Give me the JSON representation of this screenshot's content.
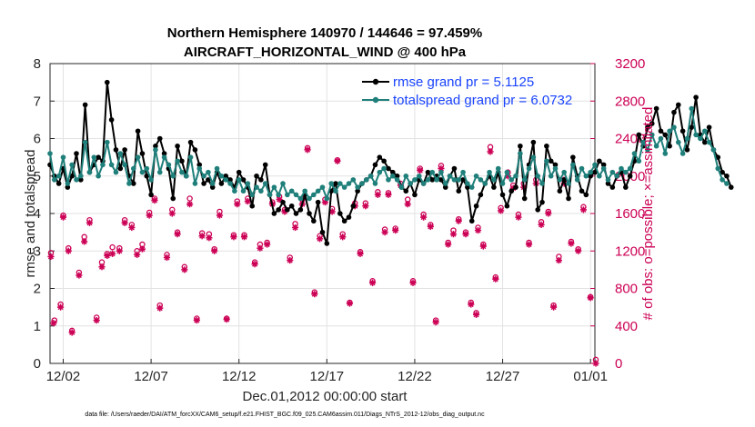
{
  "chart_data": {
    "type": "line",
    "title_line1": "Northern Hemisphere 140970 / 144646 = 97.459%",
    "title_line2": "AIRCRAFT_HORIZONTAL_WIND @ 400 hPa",
    "xlabel": "Dec.01,2012 00:00:00 start",
    "ylabel": "rmse and totalspread",
    "ylabel_right": "# of obs: o=possible; ×=assimilated",
    "footnote": "data file: /Users/raeder/DAI/ATM_forcXX/CAM6_setup/f.e21.FHIST_BGC.f09_025.CAM6assim.011/Diags_NTrS_2012-12/obs_diag_output.nc",
    "x_tick_labels": [
      "12/02",
      "12/07",
      "12/12",
      "12/17",
      "12/22",
      "12/27",
      "01/01"
    ],
    "x_tick_days": [
      2,
      7,
      12,
      17,
      22,
      27,
      32
    ],
    "xlim_days": [
      1.25,
      32.25
    ],
    "ylim": [
      0,
      8
    ],
    "y_ticks": [
      0,
      1,
      2,
      3,
      4,
      5,
      6,
      7,
      8
    ],
    "ylim_right": [
      0,
      3200
    ],
    "y_ticks_right": [
      0,
      400,
      800,
      1200,
      1600,
      2000,
      2400,
      2800,
      3200
    ],
    "legend": [
      {
        "label": "rmse grand pr = 5.1125",
        "color": "#000000"
      },
      {
        "label": "totalspread grand pr = 6.0732",
        "color": "#1f7f7a"
      }
    ],
    "colors": {
      "rmse": "#000000",
      "spread": "#1f7f7a",
      "obs": "#cc0055"
    },
    "day_start": 1.25,
    "day_step": 0.25,
    "series": [
      {
        "name": "rmse",
        "values": [
          5.3,
          5.0,
          4.8,
          5.2,
          4.7,
          5.0,
          5.6,
          4.9,
          6.9,
          5.1,
          5.3,
          5.5,
          5.4,
          7.5,
          6.5,
          5.7,
          5.2,
          5.7,
          5.0,
          4.8,
          6.2,
          5.6,
          5.0,
          4.5,
          5.8,
          6.0,
          5.6,
          5.2,
          4.4,
          5.8,
          5.4,
          5.0,
          5.9,
          5.7,
          5.3,
          4.8,
          4.9,
          4.7,
          5.1,
          4.8,
          5.0,
          4.9,
          4.7,
          5.1,
          4.9,
          4.7,
          4.2,
          5.0,
          4.9,
          5.3,
          4.5,
          4.0,
          4.1,
          4.3,
          4.1,
          4.2,
          4.0,
          4.1,
          4.5,
          4.0,
          3.8,
          4.3,
          3.5,
          3.2,
          4.6,
          4.8,
          4.0,
          3.8,
          3.9,
          4.2,
          4.6,
          4.8,
          4.9,
          5.0,
          5.3,
          5.5,
          5.4,
          5.2,
          5.1,
          5.0,
          4.7,
          4.6,
          4.8,
          4.5,
          4.9,
          4.8,
          5.1,
          4.9,
          5.0,
          4.9,
          4.7,
          5.0,
          5.2,
          4.6,
          4.9,
          4.7,
          3.8,
          4.2,
          4.5,
          4.8,
          5.0,
          4.7,
          5.1,
          4.5,
          4.2,
          4.6,
          4.7,
          5.8,
          4.4,
          5.3,
          5.9,
          4.1,
          4.3,
          5.8,
          5.4,
          5.3,
          4.6,
          4.9,
          4.4,
          5.5,
          5.0,
          4.6,
          4.5,
          5.0,
          5.1,
          5.4,
          5.3,
          4.8,
          4.7,
          5.0,
          5.1,
          4.7,
          5.0,
          5.4,
          6.1,
          5.8,
          6.3,
          6.4,
          6.8,
          6.2,
          6.1,
          5.8,
          6.7,
          6.9,
          6.2,
          5.7,
          6.3,
          7.1,
          6.1,
          5.9,
          6.3,
          5.7,
          5.5,
          5.1,
          5.0,
          4.7
        ],
        "color": "#000000"
      },
      {
        "name": "totalspread",
        "values": [
          5.6,
          4.9,
          5.0,
          5.5,
          4.8,
          5.3,
          4.9,
          5.0,
          5.9,
          5.1,
          5.5,
          5.0,
          5.3,
          5.9,
          5.3,
          5.1,
          5.6,
          5.3,
          4.8,
          5.2,
          5.5,
          5.1,
          5.2,
          4.9,
          5.7,
          5.1,
          5.5,
          5.3,
          5.0,
          5.4,
          5.1,
          5.0,
          5.5,
          4.8,
          5.2,
          5.0,
          5.1,
          4.8,
          5.2,
          5.0,
          4.9,
          4.8,
          4.6,
          4.9,
          4.6,
          4.8,
          4.5,
          4.7,
          4.6,
          4.8,
          4.5,
          4.7,
          4.5,
          4.8,
          4.5,
          4.6,
          4.5,
          4.4,
          4.6,
          4.4,
          4.5,
          4.6,
          4.7,
          4.4,
          4.8,
          4.6,
          4.8,
          4.7,
          4.8,
          4.9,
          4.7,
          4.8,
          4.9,
          5.0,
          4.8,
          5.1,
          5.2,
          4.9,
          5.0,
          4.9,
          4.7,
          5.0,
          4.8,
          4.9,
          5.0,
          4.8,
          4.9,
          5.1,
          4.9,
          5.1,
          4.8,
          5.0,
          4.9,
          4.9,
          5.1,
          4.8,
          4.7,
          5.0,
          4.9,
          4.8,
          5.1,
          4.9,
          5.2,
          4.8,
          5.1,
          4.9,
          5.0,
          5.6,
          4.9,
          5.2,
          5.5,
          5.0,
          4.8,
          5.4,
          5.0,
          5.2,
          4.9,
          5.1,
          4.8,
          5.3,
          4.9,
          5.2,
          5.0,
          5.1,
          5.3,
          5.0,
          5.2,
          4.9,
          5.1,
          5.0,
          5.2,
          5.1,
          5.2,
          5.6,
          5.4,
          5.9,
          5.7,
          6.1,
          5.8,
          6.0,
          5.6,
          6.2,
          6.3,
          5.9,
          5.6,
          6.0,
          6.8,
          6.1,
          6.0,
          6.2,
          5.9,
          5.7,
          5.2,
          4.9,
          4.8
        ],
        "color": "#1f7f7a"
      }
    ],
    "obs_possible_days": [
      1.3,
      1.5,
      1.85,
      2.0,
      2.3,
      2.5,
      2.9,
      3.2,
      3.5,
      3.9,
      4.2,
      4.5,
      4.8,
      5.2,
      5.5,
      5.9,
      6.2,
      6.5,
      6.9,
      7.2,
      7.5,
      7.9,
      8.2,
      8.5,
      8.9,
      9.2,
      9.6,
      9.9,
      10.3,
      10.6,
      10.9,
      11.3,
      11.7,
      11.9,
      12.3,
      12.5,
      12.9,
      13.2,
      13.6,
      13.9,
      14.3,
      14.6,
      14.9,
      15.2,
      15.6,
      15.9,
      16.3,
      16.6,
      16.9,
      17.3,
      17.6,
      17.9,
      18.3,
      18.6,
      18.9,
      19.2,
      19.6,
      19.9,
      20.3,
      20.5,
      20.9,
      21.2,
      21.6,
      21.9,
      22.3,
      22.5,
      22.9,
      23.2,
      23.5,
      23.9,
      24.2,
      24.5,
      24.9,
      25.2,
      25.5,
      25.6,
      25.9,
      26.3,
      26.6,
      26.9,
      27.3,
      27.6,
      27.9,
      28.2,
      28.5,
      28.9,
      29.2,
      29.6,
      29.9,
      30.2,
      30.5,
      30.9,
      31.3,
      31.6,
      32.0,
      32.3
    ],
    "obs_possible_values": [
      1180,
      460,
      630,
      1580,
      1230,
      350,
      970,
      1350,
      1530,
      490,
      1080,
      1170,
      1240,
      1230,
      1530,
      1480,
      1200,
      1270,
      1610,
      1760,
      620,
      1160,
      1640,
      1400,
      1030,
      1760,
      480,
      1390,
      1380,
      1220,
      1620,
      480,
      1370,
      1730,
      1370,
      1760,
      1080,
      1270,
      1290,
      1720,
      1780,
      1640,
      1130,
      1490,
      1750,
      2300,
      760,
      1360,
      1750,
      1650,
      2170,
      1380,
      650,
      1710,
      1190,
      1710,
      880,
      1830,
      1430,
      1820,
      1440,
      1920,
      1750,
      880,
      2080,
      1590,
      1480,
      460,
      2110,
      1290,
      1420,
      1540,
      1400,
      650,
      540,
      1450,
      1270,
      2310,
      920,
      1660,
      2040,
      1900,
      1590,
      1920,
      1290,
      1960,
      1510,
      1620,
      620,
      1140,
      1960,
      1300,
      1220,
      1670,
      710,
      40
    ],
    "obs_assimilated_days": [
      1.3,
      1.45,
      1.85,
      2.0,
      2.3,
      2.5,
      2.9,
      3.2,
      3.5,
      3.9,
      4.2,
      4.5,
      4.8,
      5.2,
      5.5,
      5.9,
      6.2,
      6.5,
      6.9,
      7.2,
      7.5,
      7.9,
      8.2,
      8.5,
      8.9,
      9.2,
      9.6,
      9.9,
      10.3,
      10.6,
      10.9,
      11.3,
      11.7,
      11.9,
      12.3,
      12.5,
      12.9,
      13.2,
      13.6,
      13.9,
      14.3,
      14.6,
      14.9,
      15.2,
      15.6,
      15.9,
      16.3,
      16.6,
      16.9,
      17.3,
      17.6,
      17.9,
      18.3,
      18.6,
      18.9,
      19.2,
      19.6,
      19.9,
      20.3,
      20.5,
      20.9,
      21.2,
      21.6,
      21.9,
      22.3,
      22.5,
      22.9,
      23.2,
      23.5,
      23.9,
      24.2,
      24.5,
      24.9,
      25.2,
      25.5,
      25.6,
      25.9,
      26.3,
      26.6,
      26.9,
      27.3,
      27.6,
      27.9,
      28.2,
      28.5,
      28.9,
      29.2,
      29.6,
      29.9,
      30.2,
      30.5,
      30.9,
      31.3,
      31.6,
      32.0,
      32.3
    ],
    "obs_assimilated_values": [
      1140,
      430,
      600,
      1560,
      1200,
      330,
      940,
      1300,
      1500,
      460,
      1030,
      1150,
      1170,
      1200,
      1500,
      1450,
      1160,
      1220,
      1580,
      1740,
      590,
      1130,
      1600,
      1380,
      1000,
      1700,
      460,
      1360,
      1340,
      1200,
      1580,
      470,
      1350,
      1700,
      1350,
      1730,
      1060,
      1230,
      1270,
      1700,
      1750,
      1620,
      1100,
      1450,
      1700,
      2280,
      740,
      1330,
      1720,
      1620,
      2160,
      1350,
      640,
      1680,
      1170,
      1680,
      860,
      1800,
      1400,
      1800,
      1420,
      1900,
      1700,
      860,
      2060,
      1560,
      1460,
      440,
      2080,
      1270,
      1380,
      1520,
      1380,
      630,
      520,
      1420,
      1250,
      2260,
      900,
      1630,
      2000,
      1870,
      1560,
      1880,
      1270,
      1920,
      1480,
      1600,
      600,
      1100,
      1920,
      1280,
      1200,
      1640,
      700,
      0
    ]
  }
}
